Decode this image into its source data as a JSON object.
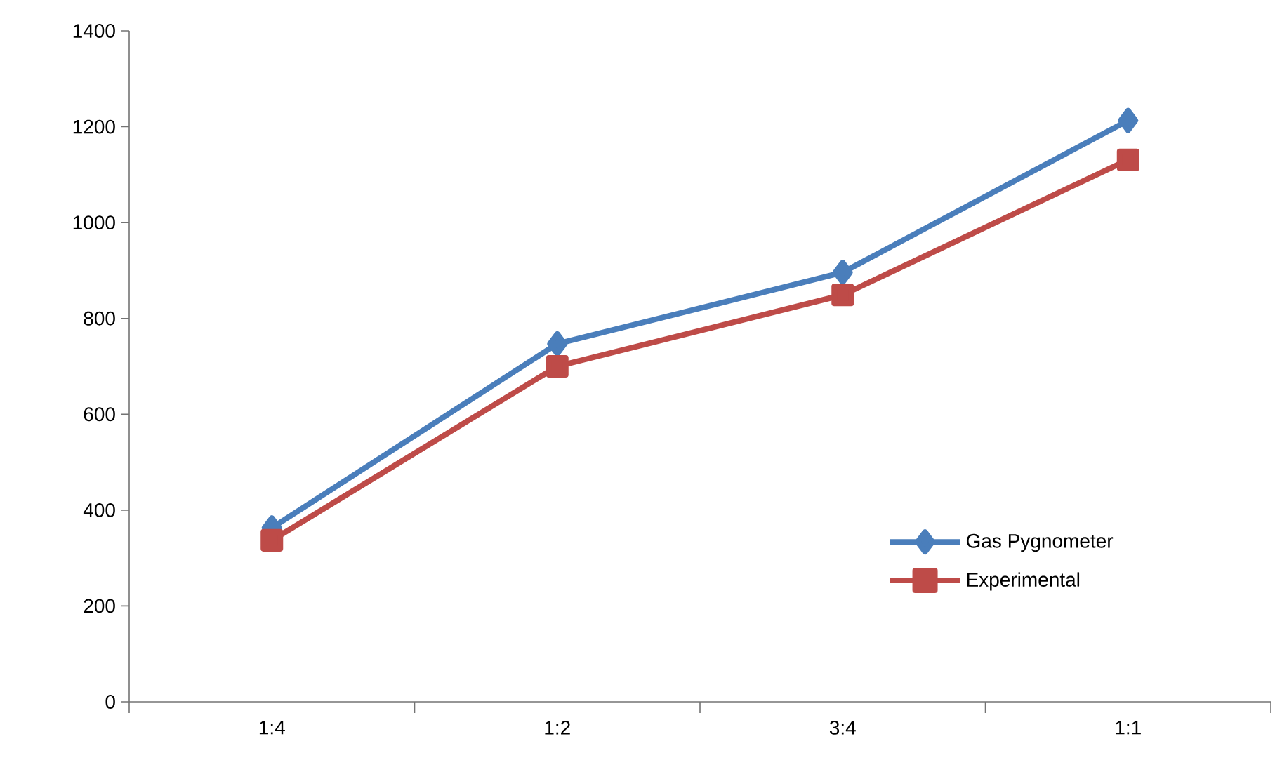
{
  "chart_data": {
    "type": "line",
    "categories": [
      "1:4",
      "1:2",
      "3:4",
      "1:1"
    ],
    "series": [
      {
        "name": "Gas Pygnometer",
        "color": "#4a7ebb",
        "marker": "diamond",
        "values": [
          363,
          747,
          896,
          1213
        ]
      },
      {
        "name": "Experimental",
        "color": "#be4b48",
        "marker": "square",
        "values": [
          337,
          700,
          849,
          1131
        ]
      }
    ],
    "ylim": [
      0,
      1400
    ],
    "yticks": [
      0,
      200,
      400,
      600,
      800,
      1000,
      1200,
      1400
    ],
    "grid": false,
    "legend": "bottom right"
  }
}
